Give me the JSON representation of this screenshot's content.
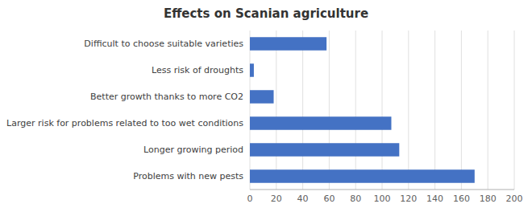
{
  "chart_data": {
    "type": "bar",
    "orientation": "horizontal",
    "title": "Effects on Scanian agriculture",
    "categories": [
      "Problems with new pests",
      "Longer growing period",
      "Larger risk for problems related to too wet conditions",
      "Better growth thanks to more CO2",
      "Less risk of droughts",
      "Difficult to choose suitable varieties"
    ],
    "values": [
      170,
      113,
      107,
      18,
      3,
      58
    ],
    "color": "#4472C4",
    "xlim": [
      0,
      200
    ],
    "xticks": [
      0,
      20,
      40,
      60,
      80,
      100,
      120,
      140,
      160,
      180,
      200
    ],
    "grid": true
  }
}
